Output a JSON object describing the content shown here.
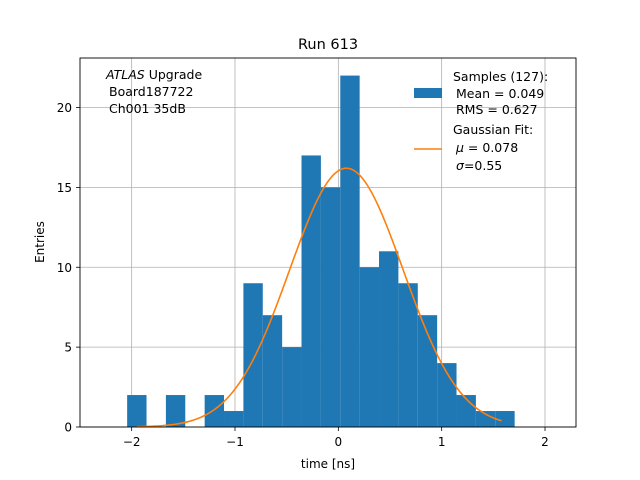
{
  "chart_data": {
    "type": "bar",
    "title": "Run 613",
    "xlabel": "time [ns]",
    "ylabel": "Entries",
    "xlim": [
      -2.5,
      2.3
    ],
    "ylim": [
      0,
      23.1
    ],
    "xticks": [
      -2,
      -1,
      0,
      1,
      2
    ],
    "yticks": [
      0,
      5,
      10,
      15,
      20
    ],
    "grid": true,
    "annotation": {
      "atlas": "ATLAS",
      "upgrade": "Upgrade",
      "line2": "Board187722",
      "line3": "Ch001 35dB"
    },
    "legend": {
      "position": "top-right",
      "samples_title": "Samples (127):",
      "samples_mean": "Mean = 0.049",
      "samples_rms": "RMS = 0.627",
      "fit_title": "Gaussian Fit:",
      "fit_mu_symbol": "μ",
      "fit_mu_value": " = 0.078",
      "fit_sigma_symbol": "σ",
      "fit_sigma_value": "=0.55"
    },
    "bin_width": 0.1875,
    "histogram": {
      "name": "Samples",
      "color": "#1f77b4",
      "bins": [
        {
          "x": -1.95,
          "count": 2
        },
        {
          "x": -1.575,
          "count": 2
        },
        {
          "x": -1.2,
          "count": 2
        },
        {
          "x": -1.0125,
          "count": 1
        },
        {
          "x": -0.825,
          "count": 9
        },
        {
          "x": -0.6375,
          "count": 7
        },
        {
          "x": -0.45,
          "count": 5
        },
        {
          "x": -0.2625,
          "count": 17
        },
        {
          "x": -0.075,
          "count": 15
        },
        {
          "x": 0.1125,
          "count": 22
        },
        {
          "x": 0.3,
          "count": 10
        },
        {
          "x": 0.4875,
          "count": 11
        },
        {
          "x": 0.675,
          "count": 9
        },
        {
          "x": 0.8625,
          "count": 7
        },
        {
          "x": 1.05,
          "count": 4
        },
        {
          "x": 1.2375,
          "count": 2
        },
        {
          "x": 1.425,
          "count": 1
        },
        {
          "x": 1.6125,
          "count": 1
        }
      ]
    },
    "fit": {
      "name": "Gaussian Fit",
      "color": "#ff7f0e",
      "mu": 0.078,
      "sigma": 0.55,
      "amplitude": 16.2,
      "xmin": -1.95,
      "xmax": 1.58
    }
  }
}
